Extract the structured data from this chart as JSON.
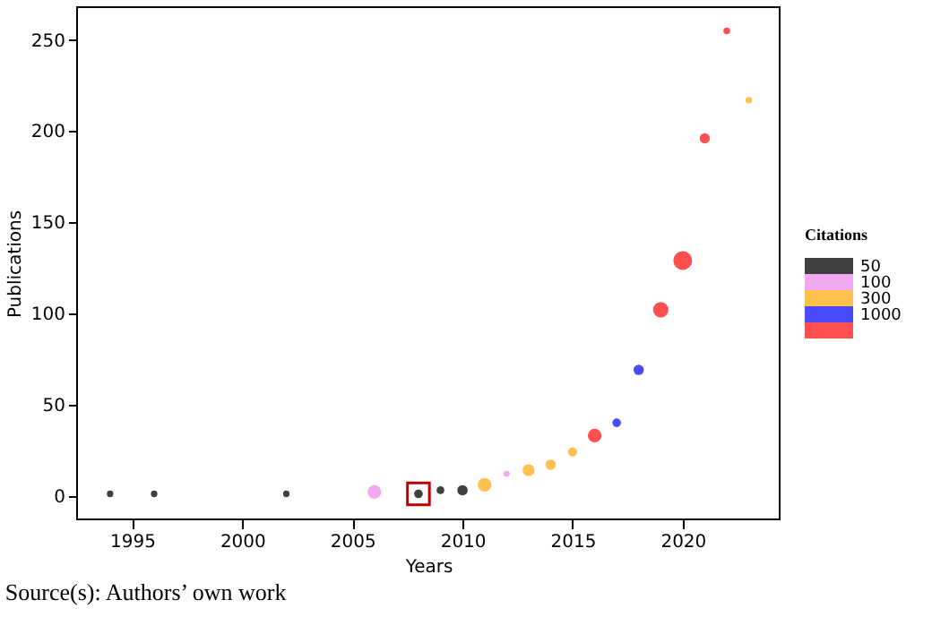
{
  "chart_data": {
    "type": "bubble",
    "xlabel": "Years",
    "ylabel": "Publications",
    "legend_title": "Citations",
    "xlim": [
      1992.5,
      2024.4
    ],
    "xticks": [
      1995,
      2000,
      2005,
      2010,
      2015,
      2020
    ],
    "ylim": [
      -13,
      268
    ],
    "yticks": [
      0,
      50,
      100,
      150,
      200,
      250
    ],
    "grid": false,
    "legend": "right",
    "annotations": [
      "Source(s): Authors’ own work"
    ],
    "series": [
      {
        "name": "50",
        "color": "#404040",
        "x": [
          1994,
          1996,
          2002,
          2008,
          2009,
          2010
        ],
        "values": [
          1,
          1,
          1,
          1,
          3,
          3
        ],
        "sizes": [
          0.12,
          0.12,
          0.12,
          0.21,
          0.17,
          0.3
        ]
      },
      {
        "name": "100",
        "color": "#f0a8f0",
        "x": [
          2006,
          2012
        ],
        "values": [
          2,
          12
        ],
        "sizes": [
          0.53,
          0.11
        ]
      },
      {
        "name": "300",
        "color": "#ffc04d",
        "x": [
          2011,
          2013,
          2014,
          2015,
          2023
        ],
        "values": [
          6,
          14,
          17,
          24,
          217
        ],
        "sizes": [
          0.53,
          0.4,
          0.3,
          0.24,
          0.12
        ]
      },
      {
        "name": "1000",
        "color": "#4a4aff",
        "x": [
          2017,
          2018
        ],
        "values": [
          40,
          69
        ],
        "sizes": [
          0.21,
          0.3
        ]
      },
      {
        "color": "#ff4f4f",
        "x": [
          2016,
          2019,
          2020,
          2021,
          2022
        ],
        "values": [
          33,
          102,
          129,
          196,
          255
        ],
        "sizes": [
          0.53,
          0.67,
          1,
          0.3,
          0.13
        ]
      },
      {
        "type": "scatter",
        "marker": "square",
        "color": "#c00000",
        "x": [
          2008
        ],
        "values": [
          1
        ]
      }
    ]
  }
}
